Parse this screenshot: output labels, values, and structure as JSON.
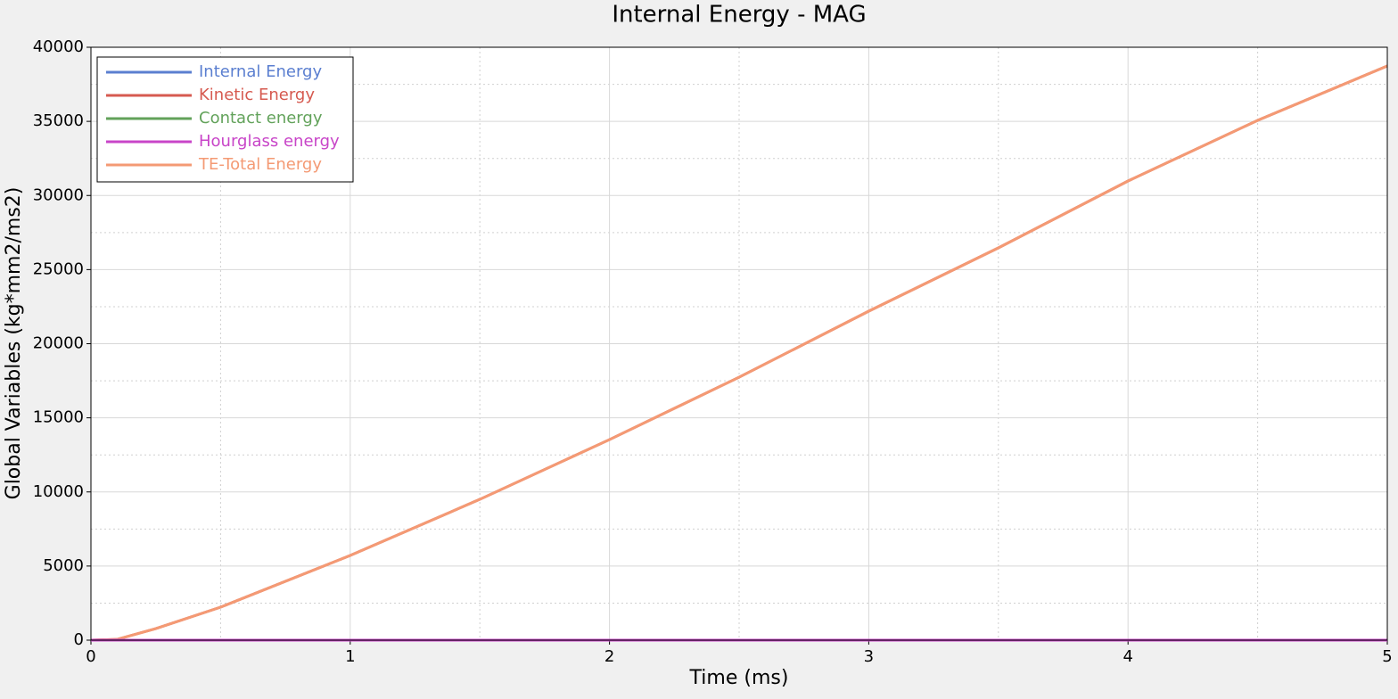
{
  "chart_data": {
    "type": "line",
    "title": "Internal Energy - MAG",
    "xlabel": "Time (ms)",
    "ylabel": "Global Variables (kg*mm2/ms2)",
    "x": [
      0,
      0.1,
      0.25,
      0.5,
      1,
      1.5,
      2,
      2.5,
      3,
      3.5,
      4,
      4.5,
      5
    ],
    "series": [
      {
        "name": "Internal Energy",
        "color": "#5b7fd0",
        "values": [
          0,
          0,
          0,
          0,
          0,
          0,
          0,
          0,
          0,
          0,
          0,
          0,
          0
        ]
      },
      {
        "name": "Kinetic Energy",
        "color": "#d65a50",
        "values": [
          0,
          50,
          780,
          2225,
          5714,
          9500,
          13530,
          17740,
          22195,
          26466,
          30977,
          35068,
          38737
        ]
      },
      {
        "name": "Contact energy",
        "color": "#62a25a",
        "values": [
          0,
          0,
          0,
          0,
          0,
          0,
          0,
          0,
          0,
          0,
          0,
          0,
          0
        ]
      },
      {
        "name": "Hourglass energy",
        "color": "#c845c8",
        "values": [
          0,
          0,
          0,
          0,
          0,
          0,
          0,
          0,
          0,
          0,
          0,
          0,
          0
        ]
      },
      {
        "name": "TE-Total Energy",
        "color": "#f49a74",
        "values": [
          0,
          50,
          780,
          2225,
          5714,
          9500,
          13530,
          17740,
          22195,
          26466,
          30977,
          35068,
          38737
        ]
      }
    ],
    "xlim": [
      0,
      5
    ],
    "xticks": [
      0,
      1,
      2,
      3,
      4,
      5
    ],
    "xticks_minor": [
      0.5,
      1.5,
      2.5,
      3.5,
      4.5
    ],
    "ylim": [
      0,
      40000
    ],
    "yticks": [
      0,
      5000,
      10000,
      15000,
      20000,
      25000,
      30000,
      35000,
      40000
    ],
    "yticks_minor": [
      2500,
      7500,
      12500,
      17500,
      22500,
      27500,
      32500,
      37500
    ],
    "grid": true,
    "legend": "upper left"
  }
}
